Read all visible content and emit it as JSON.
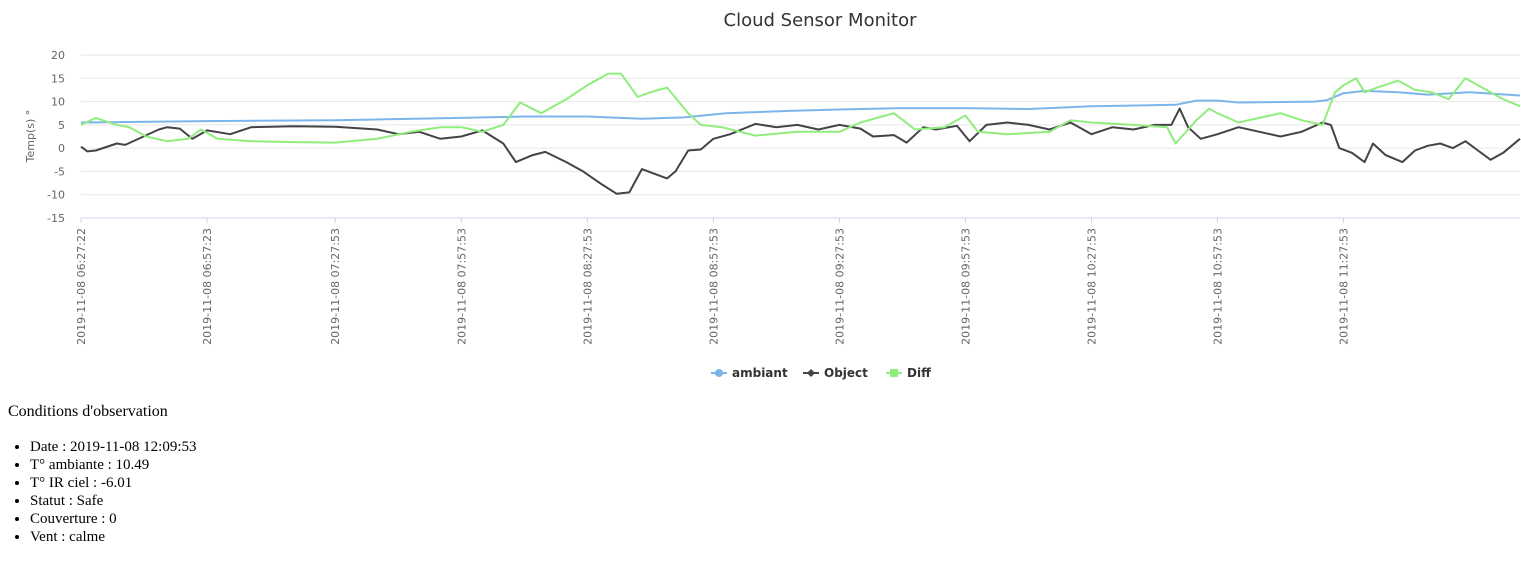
{
  "chart_data": {
    "type": "line",
    "title": "Cloud Sensor Monitor",
    "ylabel": "Temp(s) °",
    "ylim": [
      -15,
      20
    ],
    "yticks": [
      20,
      15,
      10,
      5,
      0,
      -5,
      -10,
      -15
    ],
    "grid": true,
    "legend_position": "bottom-center",
    "x_range": [
      "2019-11-08 06:27:22",
      "2019-11-08 12:09:53"
    ],
    "x_tick_labels": [
      "2019-11-08 06:27:22",
      "2019-11-08 06:57:23",
      "2019-11-08 07:27:53",
      "2019-11-08 07:57:53",
      "2019-11-08 08:27:53",
      "2019-11-08 08:57:53",
      "2019-11-08 09:27:53",
      "2019-11-08 09:57:53",
      "2019-11-08 10:27:53",
      "2019-11-08 10:57:53",
      "2019-11-08 11:27:53"
    ],
    "series": [
      {
        "name": "ambiant",
        "color": "#7cb5ec",
        "marker": "circle",
        "points": [
          [
            "2019-11-08 06:27:22",
            5.5
          ],
          [
            "2019-11-08 06:57:23",
            5.8
          ],
          [
            "2019-11-08 07:27:53",
            6.0
          ],
          [
            "2019-11-08 07:57:53",
            6.5
          ],
          [
            "2019-11-08 08:12:53",
            6.8
          ],
          [
            "2019-11-08 08:27:53",
            6.8
          ],
          [
            "2019-11-08 08:40:53",
            6.3
          ],
          [
            "2019-11-08 08:50:53",
            6.6
          ],
          [
            "2019-11-08 09:00:53",
            7.5
          ],
          [
            "2019-11-08 09:15:53",
            8.0
          ],
          [
            "2019-11-08 09:27:53",
            8.3
          ],
          [
            "2019-11-08 09:42:53",
            8.6
          ],
          [
            "2019-11-08 09:57:53",
            8.6
          ],
          [
            "2019-11-08 10:12:53",
            8.4
          ],
          [
            "2019-11-08 10:27:53",
            9.0
          ],
          [
            "2019-11-08 10:47:53",
            9.3
          ],
          [
            "2019-11-08 10:52:53",
            10.2
          ],
          [
            "2019-11-08 10:57:53",
            10.2
          ],
          [
            "2019-11-08 11:02:53",
            9.8
          ],
          [
            "2019-11-08 11:20:53",
            10.0
          ],
          [
            "2019-11-08 11:23:53",
            10.3
          ],
          [
            "2019-11-08 11:27:53",
            11.8
          ],
          [
            "2019-11-08 11:32:53",
            12.3
          ],
          [
            "2019-11-08 11:40:53",
            12.0
          ],
          [
            "2019-11-08 11:47:53",
            11.5
          ],
          [
            "2019-11-08 11:57:53",
            12.0
          ],
          [
            "2019-11-08 12:09:53",
            11.3
          ]
        ]
      },
      {
        "name": "Object",
        "color": "#434348",
        "marker": "diamond",
        "points": [
          [
            "2019-11-08 06:27:22",
            0.3
          ],
          [
            "2019-11-08 06:28:53",
            -0.7
          ],
          [
            "2019-11-08 06:30:53",
            -0.5
          ],
          [
            "2019-11-08 06:35:53",
            1.0
          ],
          [
            "2019-11-08 06:37:53",
            0.7
          ],
          [
            "2019-11-08 06:45:53",
            4.0
          ],
          [
            "2019-11-08 06:47:53",
            4.5
          ],
          [
            "2019-11-08 06:50:53",
            4.2
          ],
          [
            "2019-11-08 06:53:53",
            2.0
          ],
          [
            "2019-11-08 06:57:23",
            3.8
          ],
          [
            "2019-11-08 07:02:53",
            3.0
          ],
          [
            "2019-11-08 07:07:53",
            4.5
          ],
          [
            "2019-11-08 07:17:53",
            4.7
          ],
          [
            "2019-11-08 07:27:53",
            4.6
          ],
          [
            "2019-11-08 07:37:53",
            4.0
          ],
          [
            "2019-11-08 07:42:53",
            3.0
          ],
          [
            "2019-11-08 07:47:53",
            3.5
          ],
          [
            "2019-11-08 07:52:53",
            2.0
          ],
          [
            "2019-11-08 07:57:53",
            2.5
          ],
          [
            "2019-11-08 08:02:53",
            3.8
          ],
          [
            "2019-11-08 08:07:53",
            1.0
          ],
          [
            "2019-11-08 08:10:53",
            -3.0
          ],
          [
            "2019-11-08 08:14:53",
            -1.5
          ],
          [
            "2019-11-08 08:17:53",
            -0.8
          ],
          [
            "2019-11-08 08:22:53",
            -3.0
          ],
          [
            "2019-11-08 08:26:53",
            -5.0
          ],
          [
            "2019-11-08 08:30:53",
            -7.5
          ],
          [
            "2019-11-08 08:34:53",
            -9.8
          ],
          [
            "2019-11-08 08:37:53",
            -9.5
          ],
          [
            "2019-11-08 08:40:53",
            -4.5
          ],
          [
            "2019-11-08 08:43:53",
            -5.5
          ],
          [
            "2019-11-08 08:46:53",
            -6.5
          ],
          [
            "2019-11-08 08:48:53",
            -5.0
          ],
          [
            "2019-11-08 08:51:53",
            -0.5
          ],
          [
            "2019-11-08 08:54:53",
            -0.3
          ],
          [
            "2019-11-08 08:57:53",
            2.0
          ],
          [
            "2019-11-08 09:01:53",
            3.0
          ],
          [
            "2019-11-08 09:07:53",
            5.2
          ],
          [
            "2019-11-08 09:12:53",
            4.5
          ],
          [
            "2019-11-08 09:17:53",
            5.0
          ],
          [
            "2019-11-08 09:22:53",
            4.0
          ],
          [
            "2019-11-08 09:27:53",
            5.0
          ],
          [
            "2019-11-08 09:32:53",
            4.2
          ],
          [
            "2019-11-08 09:35:53",
            2.5
          ],
          [
            "2019-11-08 09:40:53",
            2.8
          ],
          [
            "2019-11-08 09:43:53",
            1.2
          ],
          [
            "2019-11-08 09:47:53",
            4.5
          ],
          [
            "2019-11-08 09:50:53",
            4.0
          ],
          [
            "2019-11-08 09:55:53",
            4.8
          ],
          [
            "2019-11-08 09:58:53",
            1.5
          ],
          [
            "2019-11-08 10:02:53",
            5.0
          ],
          [
            "2019-11-08 10:07:53",
            5.5
          ],
          [
            "2019-11-08 10:12:53",
            5.0
          ],
          [
            "2019-11-08 10:17:53",
            4.0
          ],
          [
            "2019-11-08 10:22:53",
            5.5
          ],
          [
            "2019-11-08 10:25:53",
            4.0
          ],
          [
            "2019-11-08 10:27:53",
            3.0
          ],
          [
            "2019-11-08 10:32:53",
            4.5
          ],
          [
            "2019-11-08 10:37:53",
            4.0
          ],
          [
            "2019-11-08 10:42:53",
            5.0
          ],
          [
            "2019-11-08 10:46:53",
            5.0
          ],
          [
            "2019-11-08 10:48:53",
            8.5
          ],
          [
            "2019-11-08 10:50:53",
            4.5
          ],
          [
            "2019-11-08 10:53:53",
            2.0
          ],
          [
            "2019-11-08 10:57:53",
            3.0
          ],
          [
            "2019-11-08 11:02:53",
            4.5
          ],
          [
            "2019-11-08 11:07:53",
            3.5
          ],
          [
            "2019-11-08 11:12:53",
            2.5
          ],
          [
            "2019-11-08 11:17:53",
            3.5
          ],
          [
            "2019-11-08 11:22:53",
            5.5
          ],
          [
            "2019-11-08 11:24:53",
            5.0
          ],
          [
            "2019-11-08 11:26:53",
            0.0
          ],
          [
            "2019-11-08 11:29:53",
            -1.0
          ],
          [
            "2019-11-08 11:32:53",
            -3.0
          ],
          [
            "2019-11-08 11:34:53",
            1.0
          ],
          [
            "2019-11-08 11:37:53",
            -1.5
          ],
          [
            "2019-11-08 11:41:53",
            -3.0
          ],
          [
            "2019-11-08 11:44:53",
            -0.5
          ],
          [
            "2019-11-08 11:47:53",
            0.5
          ],
          [
            "2019-11-08 11:50:53",
            1.0
          ],
          [
            "2019-11-08 11:53:53",
            0.0
          ],
          [
            "2019-11-08 11:56:53",
            1.5
          ],
          [
            "2019-11-08 11:59:53",
            -0.5
          ],
          [
            "2019-11-08 12:02:53",
            -2.5
          ],
          [
            "2019-11-08 12:05:53",
            -1.0
          ],
          [
            "2019-11-08 12:09:53",
            2.0
          ]
        ]
      },
      {
        "name": "Diff",
        "color": "#90ed7d",
        "marker": "square",
        "points": [
          [
            "2019-11-08 06:27:22",
            5.0
          ],
          [
            "2019-11-08 06:30:53",
            6.5
          ],
          [
            "2019-11-08 06:35:53",
            5.0
          ],
          [
            "2019-11-08 06:38:53",
            4.5
          ],
          [
            "2019-11-08 06:42:53",
            2.5
          ],
          [
            "2019-11-08 06:47:53",
            1.5
          ],
          [
            "2019-11-08 06:52:53",
            2.0
          ],
          [
            "2019-11-08 06:55:53",
            4.0
          ],
          [
            "2019-11-08 06:59:53",
            2.0
          ],
          [
            "2019-11-08 07:07:53",
            1.5
          ],
          [
            "2019-11-08 07:17:53",
            1.3
          ],
          [
            "2019-11-08 07:27:53",
            1.2
          ],
          [
            "2019-11-08 07:37:53",
            2.0
          ],
          [
            "2019-11-08 07:45:53",
            3.5
          ],
          [
            "2019-11-08 07:52:53",
            4.5
          ],
          [
            "2019-11-08 07:57:53",
            4.5
          ],
          [
            "2019-11-08 08:02:53",
            3.5
          ],
          [
            "2019-11-08 08:07:53",
            5.0
          ],
          [
            "2019-11-08 08:11:53",
            9.8
          ],
          [
            "2019-11-08 08:16:53",
            7.5
          ],
          [
            "2019-11-08 08:22:53",
            10.5
          ],
          [
            "2019-11-08 08:27:53",
            13.5
          ],
          [
            "2019-11-08 08:32:53",
            16.0
          ],
          [
            "2019-11-08 08:35:53",
            16.0
          ],
          [
            "2019-11-08 08:39:53",
            11.0
          ],
          [
            "2019-11-08 08:42:53",
            12.0
          ],
          [
            "2019-11-08 08:46:53",
            13.0
          ],
          [
            "2019-11-08 08:51:53",
            7.5
          ],
          [
            "2019-11-08 08:54:53",
            5.0
          ],
          [
            "2019-11-08 08:59:53",
            4.5
          ],
          [
            "2019-11-08 09:07:53",
            2.7
          ],
          [
            "2019-11-08 09:17:53",
            3.5
          ],
          [
            "2019-11-08 09:27:53",
            3.5
          ],
          [
            "2019-11-08 09:32:53",
            5.5
          ],
          [
            "2019-11-08 09:40:53",
            7.5
          ],
          [
            "2019-11-08 09:45:53",
            4.0
          ],
          [
            "2019-11-08 09:52:53",
            4.5
          ],
          [
            "2019-11-08 09:57:53",
            7.0
          ],
          [
            "2019-11-08 10:00:53",
            3.5
          ],
          [
            "2019-11-08 10:07:53",
            3.0
          ],
          [
            "2019-11-08 10:17:53",
            3.5
          ],
          [
            "2019-11-08 10:22:53",
            6.0
          ],
          [
            "2019-11-08 10:27:53",
            5.5
          ],
          [
            "2019-11-08 10:37:53",
            5.0
          ],
          [
            "2019-11-08 10:45:53",
            4.5
          ],
          [
            "2019-11-08 10:47:53",
            1.0
          ],
          [
            "2019-11-08 10:52:53",
            6.0
          ],
          [
            "2019-11-08 10:55:53",
            8.5
          ],
          [
            "2019-11-08 10:57:53",
            7.5
          ],
          [
            "2019-11-08 11:02:53",
            5.5
          ],
          [
            "2019-11-08 11:07:53",
            6.5
          ],
          [
            "2019-11-08 11:12:53",
            7.5
          ],
          [
            "2019-11-08 11:17:53",
            6.0
          ],
          [
            "2019-11-08 11:22:53",
            5.0
          ],
          [
            "2019-11-08 11:25:53",
            12.0
          ],
          [
            "2019-11-08 11:27:53",
            13.5
          ],
          [
            "2019-11-08 11:30:53",
            15.0
          ],
          [
            "2019-11-08 11:32:53",
            12.0
          ],
          [
            "2019-11-08 11:35:53",
            13.0
          ],
          [
            "2019-11-08 11:40:53",
            14.5
          ],
          [
            "2019-11-08 11:44:53",
            12.5
          ],
          [
            "2019-11-08 11:48:53",
            12.0
          ],
          [
            "2019-11-08 11:52:53",
            10.5
          ],
          [
            "2019-11-08 11:56:53",
            15.0
          ],
          [
            "2019-11-08 12:00:53",
            13.0
          ],
          [
            "2019-11-08 12:05:53",
            10.5
          ],
          [
            "2019-11-08 12:09:53",
            9.0
          ]
        ]
      }
    ]
  },
  "conditions": {
    "title": "Conditions d'observation",
    "items": [
      "Date : 2019-11-08 12:09:53",
      "T° ambiante : 10.49",
      "T° IR ciel : -6.01",
      "Statut : Safe",
      "Couverture : 0",
      "Vent : calme"
    ]
  }
}
